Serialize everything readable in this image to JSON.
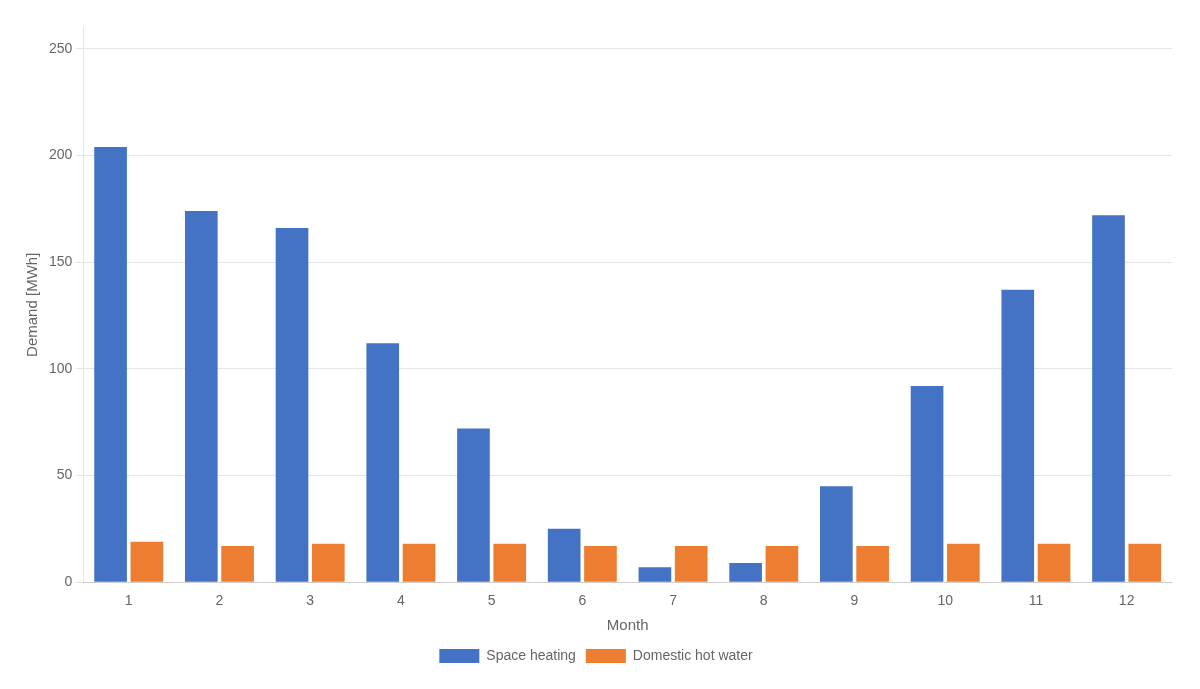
{
  "chart_data": {
    "type": "bar",
    "categories": [
      "1",
      "2",
      "3",
      "4",
      "5",
      "6",
      "7",
      "8",
      "9",
      "10",
      "11",
      "12"
    ],
    "series": [
      {
        "name": "Space heating",
        "color": "#4472C4",
        "values": [
          204,
          174,
          166,
          112,
          72,
          25,
          7,
          9,
          45,
          92,
          137,
          172
        ]
      },
      {
        "name": "Domestic hot water",
        "color": "#ED7D31",
        "values": [
          19,
          17,
          18,
          18,
          18,
          17,
          17,
          17,
          17,
          18,
          18,
          18
        ]
      }
    ],
    "xlabel": "Month",
    "ylabel": "Demand [MWh]",
    "ylim": [
      0,
      260
    ],
    "yticks": [
      0,
      50,
      100,
      150,
      200,
      250
    ],
    "grid": true,
    "legend": "bottom"
  }
}
